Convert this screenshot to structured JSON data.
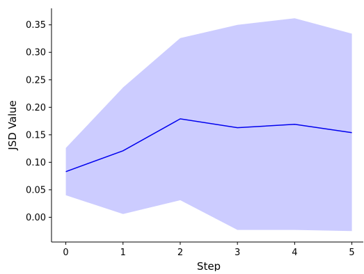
{
  "chart_data": {
    "type": "line",
    "title": "",
    "xlabel": "Step",
    "ylabel": "JSD Value",
    "x": [
      0,
      1,
      2,
      3,
      4,
      5
    ],
    "series": [
      {
        "values": [
          0.083,
          0.121,
          0.179,
          0.163,
          0.169,
          0.154
        ],
        "color": "#0000ee"
      }
    ],
    "band": {
      "lower": [
        0.04,
        0.006,
        0.031,
        -0.023,
        -0.023,
        -0.025
      ],
      "upper": [
        0.126,
        0.236,
        0.326,
        0.35,
        0.362,
        0.334
      ],
      "color": "#ccccff"
    },
    "xticks": [
      0,
      1,
      2,
      3,
      4,
      5
    ],
    "yticks": [
      "0.00",
      "0.05",
      "0.10",
      "0.15",
      "0.20",
      "0.25",
      "0.30",
      "0.35"
    ],
    "xlim": [
      -0.25,
      5.2
    ],
    "ylim": [
      -0.045,
      0.38
    ],
    "grid": false,
    "legend": "none"
  }
}
